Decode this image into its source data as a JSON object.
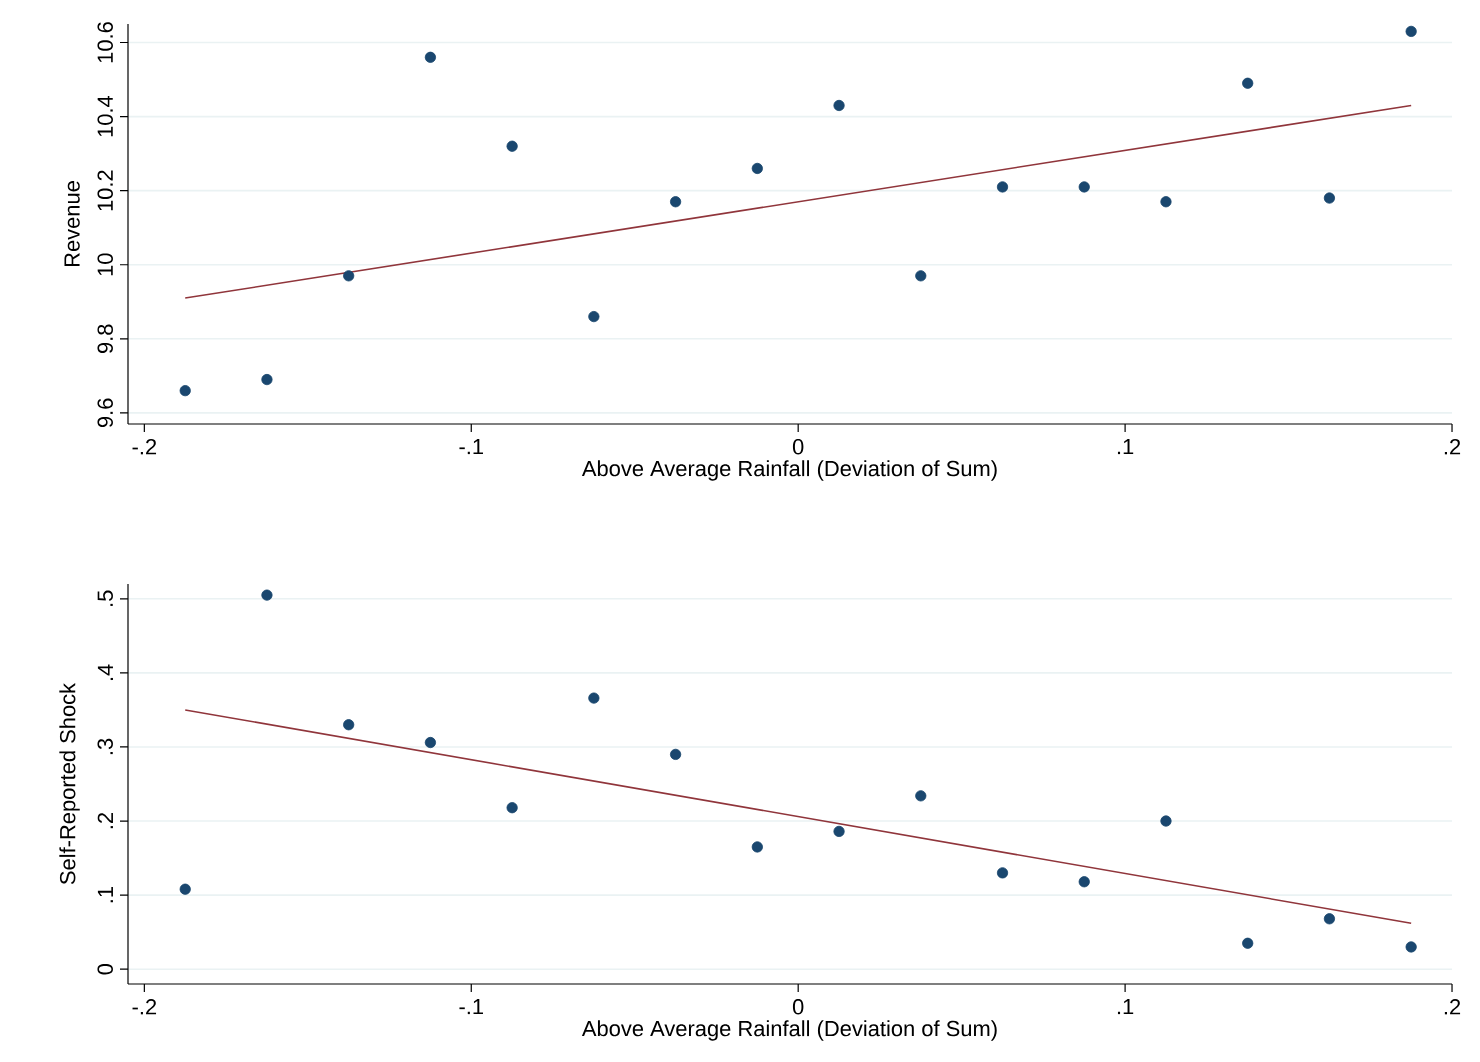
{
  "chart_data": [
    {
      "type": "scatter",
      "xlabel": "Above Average Rainfall (Deviation of Sum)",
      "ylabel": "Revenue",
      "xlim": [
        -0.205,
        0.2
      ],
      "ylim": [
        9.57,
        10.65
      ],
      "xticks": [
        {
          "value": -0.2,
          "label": "-.2"
        },
        {
          "value": -0.1,
          "label": "-.1"
        },
        0,
        {
          "value": 0.1,
          "label": ".1"
        },
        {
          "value": 0.2,
          "label": ".2"
        }
      ],
      "yticks": [
        9.6,
        9.8,
        10,
        10.2,
        10.4,
        10.6
      ],
      "grid": "y",
      "marker": "circle",
      "series": [
        {
          "color": "#1a476f",
          "x": [
            -0.1875,
            -0.1625,
            -0.1375,
            -0.1125,
            -0.0875,
            -0.0625,
            -0.0375,
            -0.0125,
            0.0125,
            0.0375,
            0.0625,
            0.0875,
            0.1125,
            0.1375,
            0.1625,
            0.1875
          ],
          "values": [
            9.66,
            9.69,
            9.97,
            10.56,
            10.32,
            9.86,
            10.17,
            10.26,
            10.43,
            9.97,
            10.21,
            10.21,
            10.17,
            10.49,
            10.18,
            10.63
          ]
        },
        {
          "type": "line",
          "color": "#90353b",
          "marker": "none",
          "x": [
            -0.1875,
            0.1875
          ],
          "values": [
            9.91,
            10.43
          ]
        }
      ]
    },
    {
      "type": "scatter",
      "xlabel": "Above Average Rainfall (Deviation of Sum)",
      "ylabel": "Self-Reported Shock",
      "xlim": [
        -0.205,
        0.2
      ],
      "ylim": [
        -0.02,
        0.52
      ],
      "xticks": [
        {
          "value": -0.2,
          "label": "-.2"
        },
        {
          "value": -0.1,
          "label": "-.1"
        },
        0,
        {
          "value": 0.1,
          "label": ".1"
        },
        {
          "value": 0.2,
          "label": ".2"
        }
      ],
      "yticks": [
        0,
        {
          "value": 0.1,
          "label": ".1"
        },
        {
          "value": 0.2,
          "label": ".2"
        },
        {
          "value": 0.3,
          "label": ".3"
        },
        {
          "value": 0.4,
          "label": ".4"
        },
        {
          "value": 0.5,
          "label": ".5"
        }
      ],
      "grid": "y",
      "marker": "circle",
      "series": [
        {
          "color": "#1a476f",
          "x": [
            -0.1875,
            -0.1625,
            -0.1375,
            -0.1125,
            -0.0875,
            -0.0625,
            -0.0375,
            -0.0125,
            0.0125,
            0.0375,
            0.0625,
            0.0875,
            0.1125,
            0.1375,
            0.1625,
            0.1875
          ],
          "values": [
            0.108,
            0.505,
            0.33,
            0.306,
            0.218,
            0.366,
            0.29,
            0.165,
            0.186,
            0.234,
            0.13,
            0.118,
            0.2,
            0.035,
            0.068,
            0.03
          ]
        },
        {
          "type": "line",
          "color": "#90353b",
          "marker": "none",
          "x": [
            -0.1875,
            0.1875
          ],
          "values": [
            0.35,
            0.062
          ]
        }
      ]
    }
  ]
}
